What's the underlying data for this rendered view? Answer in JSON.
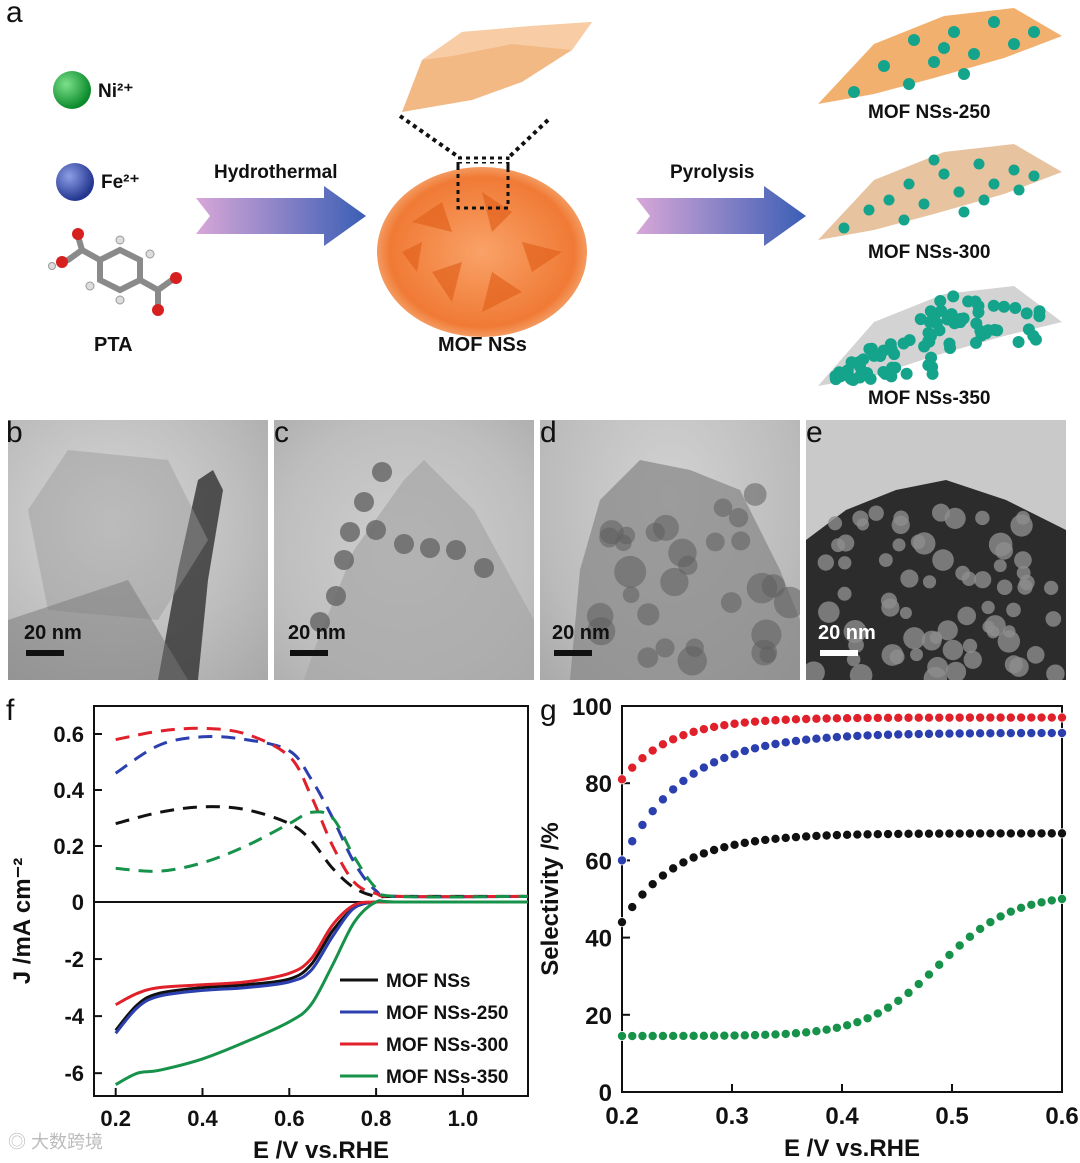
{
  "panel_a": {
    "label": "a",
    "ni_label": "Ni²⁺",
    "fe_label": "Fe²⁺",
    "pta_label": "PTA",
    "hydrothermal_label": "Hydrothermal",
    "mof_label": "MOF NSs",
    "pyrolysis_label": "Pyrolysis",
    "product_250": "MOF NSs-250",
    "product_300": "MOF NSs-300",
    "product_350": "MOF NSs-350"
  },
  "tem_panels": [
    {
      "label": "b",
      "scale": "20 nm"
    },
    {
      "label": "c",
      "scale": "20 nm"
    },
    {
      "label": "d",
      "scale": "20 nm"
    },
    {
      "label": "e",
      "scale": "20 nm"
    }
  ],
  "watermark": "大数跨境",
  "colors": {
    "black": "#111111",
    "blue": "#2b3fae",
    "red": "#e0202a",
    "green": "#17924a"
  },
  "chart_data": [
    {
      "id": "f",
      "label": "f",
      "type": "line",
      "xlabel": "E /V vs.RHE",
      "ylabel": "J /mA cm⁻²",
      "xlim": [
        0.15,
        1.15
      ],
      "ylim": [
        -6.8,
        0.7
      ],
      "xticks": [
        "0.2",
        "0.4",
        "0.6",
        "0.8",
        "1.0"
      ],
      "xtick_values": [
        0.2,
        0.4,
        0.6,
        0.8,
        1.0
      ],
      "yticks": [
        "0.6",
        "0.4",
        "0.2",
        "0",
        "-2",
        "-4",
        "-6"
      ],
      "ytick_values": [
        0.6,
        0.4,
        0.2,
        0,
        -2,
        -4,
        -6
      ],
      "note": "upper section (J>0) plotted on a stretched ring-current scale; dashed = ring current, solid = disk current",
      "legend": [
        "MOF NSs",
        "MOF NSs-250",
        "MOF NSs-300",
        "MOF NSs-350"
      ],
      "ring_series": [
        {
          "name": "MOF NSs",
          "color": "#111111",
          "x": [
            0.2,
            0.3,
            0.4,
            0.5,
            0.6,
            0.65,
            0.7,
            0.75,
            0.8,
            0.85,
            1.15
          ],
          "y": [
            0.28,
            0.32,
            0.34,
            0.33,
            0.28,
            0.22,
            0.12,
            0.05,
            0.02,
            0.02,
            0.02
          ]
        },
        {
          "name": "MOF NSs-250",
          "color": "#2b3fae",
          "x": [
            0.2,
            0.3,
            0.4,
            0.5,
            0.6,
            0.65,
            0.7,
            0.75,
            0.8,
            0.85,
            1.15
          ],
          "y": [
            0.46,
            0.56,
            0.59,
            0.58,
            0.54,
            0.44,
            0.3,
            0.14,
            0.04,
            0.02,
            0.02
          ]
        },
        {
          "name": "MOF NSs-300",
          "color": "#e0202a",
          "x": [
            0.2,
            0.3,
            0.4,
            0.5,
            0.6,
            0.65,
            0.7,
            0.75,
            0.8,
            0.85,
            1.15
          ],
          "y": [
            0.58,
            0.61,
            0.62,
            0.6,
            0.52,
            0.38,
            0.2,
            0.07,
            0.03,
            0.02,
            0.02
          ]
        },
        {
          "name": "MOF NSs-350",
          "color": "#17924a",
          "x": [
            0.2,
            0.3,
            0.4,
            0.5,
            0.6,
            0.65,
            0.7,
            0.75,
            0.8,
            0.85,
            1.15
          ],
          "y": [
            0.12,
            0.11,
            0.14,
            0.2,
            0.28,
            0.32,
            0.3,
            0.16,
            0.05,
            0.02,
            0.02
          ]
        }
      ],
      "disk_series": [
        {
          "name": "MOF NSs",
          "color": "#111111",
          "x": [
            0.2,
            0.25,
            0.3,
            0.4,
            0.5,
            0.6,
            0.65,
            0.7,
            0.75,
            0.8,
            0.85,
            1.15
          ],
          "y": [
            -4.5,
            -3.6,
            -3.2,
            -3.0,
            -2.9,
            -2.7,
            -2.2,
            -1.0,
            -0.2,
            0.0,
            0.0,
            0.0
          ]
        },
        {
          "name": "MOF NSs-250",
          "color": "#2b3fae",
          "x": [
            0.2,
            0.25,
            0.3,
            0.4,
            0.5,
            0.6,
            0.65,
            0.7,
            0.75,
            0.8,
            0.85,
            1.15
          ],
          "y": [
            -4.6,
            -3.7,
            -3.3,
            -3.1,
            -3.0,
            -2.8,
            -2.4,
            -1.2,
            -0.2,
            0.0,
            0.0,
            0.0
          ]
        },
        {
          "name": "MOF NSs-300",
          "color": "#e0202a",
          "x": [
            0.2,
            0.25,
            0.3,
            0.4,
            0.5,
            0.6,
            0.65,
            0.7,
            0.75,
            0.8,
            0.85,
            1.15
          ],
          "y": [
            -3.6,
            -3.2,
            -3.0,
            -2.9,
            -2.8,
            -2.5,
            -2.0,
            -0.8,
            -0.1,
            0.0,
            0.0,
            0.0
          ]
        },
        {
          "name": "MOF NSs-350",
          "color": "#17924a",
          "x": [
            0.2,
            0.25,
            0.3,
            0.4,
            0.5,
            0.6,
            0.65,
            0.7,
            0.75,
            0.8,
            0.85,
            1.15
          ],
          "y": [
            -6.4,
            -6.0,
            -5.9,
            -5.5,
            -4.9,
            -4.2,
            -3.6,
            -2.2,
            -0.7,
            0.0,
            0.0,
            0.0
          ]
        }
      ]
    },
    {
      "id": "g",
      "label": "g",
      "type": "scatter",
      "xlabel": "E /V vs.RHE",
      "ylabel": "Selectivity /%",
      "xlim": [
        0.2,
        0.6
      ],
      "ylim": [
        0,
        100
      ],
      "xticks": [
        "0.2",
        "0.3",
        "0.4",
        "0.5",
        "0.6"
      ],
      "xtick_values": [
        0.2,
        0.3,
        0.4,
        0.5,
        0.6
      ],
      "yticks": [
        "0",
        "20",
        "40",
        "60",
        "80",
        "100"
      ],
      "ytick_values": [
        0,
        20,
        40,
        60,
        80,
        100
      ],
      "series": [
        {
          "name": "MOF NSs-300",
          "color": "#e0202a",
          "start": 81,
          "end": 97,
          "k": 9
        },
        {
          "name": "MOF NSs-250",
          "color": "#2b3fae",
          "start": 60,
          "end": 93,
          "k": 7
        },
        {
          "name": "MOF NSs",
          "color": "#111111",
          "start": 44,
          "end": 67,
          "k": 8
        },
        {
          "name": "MOF NSs-350",
          "color": "#17924a",
          "start": 14.5,
          "end": 50,
          "k": -1
        }
      ]
    }
  ]
}
